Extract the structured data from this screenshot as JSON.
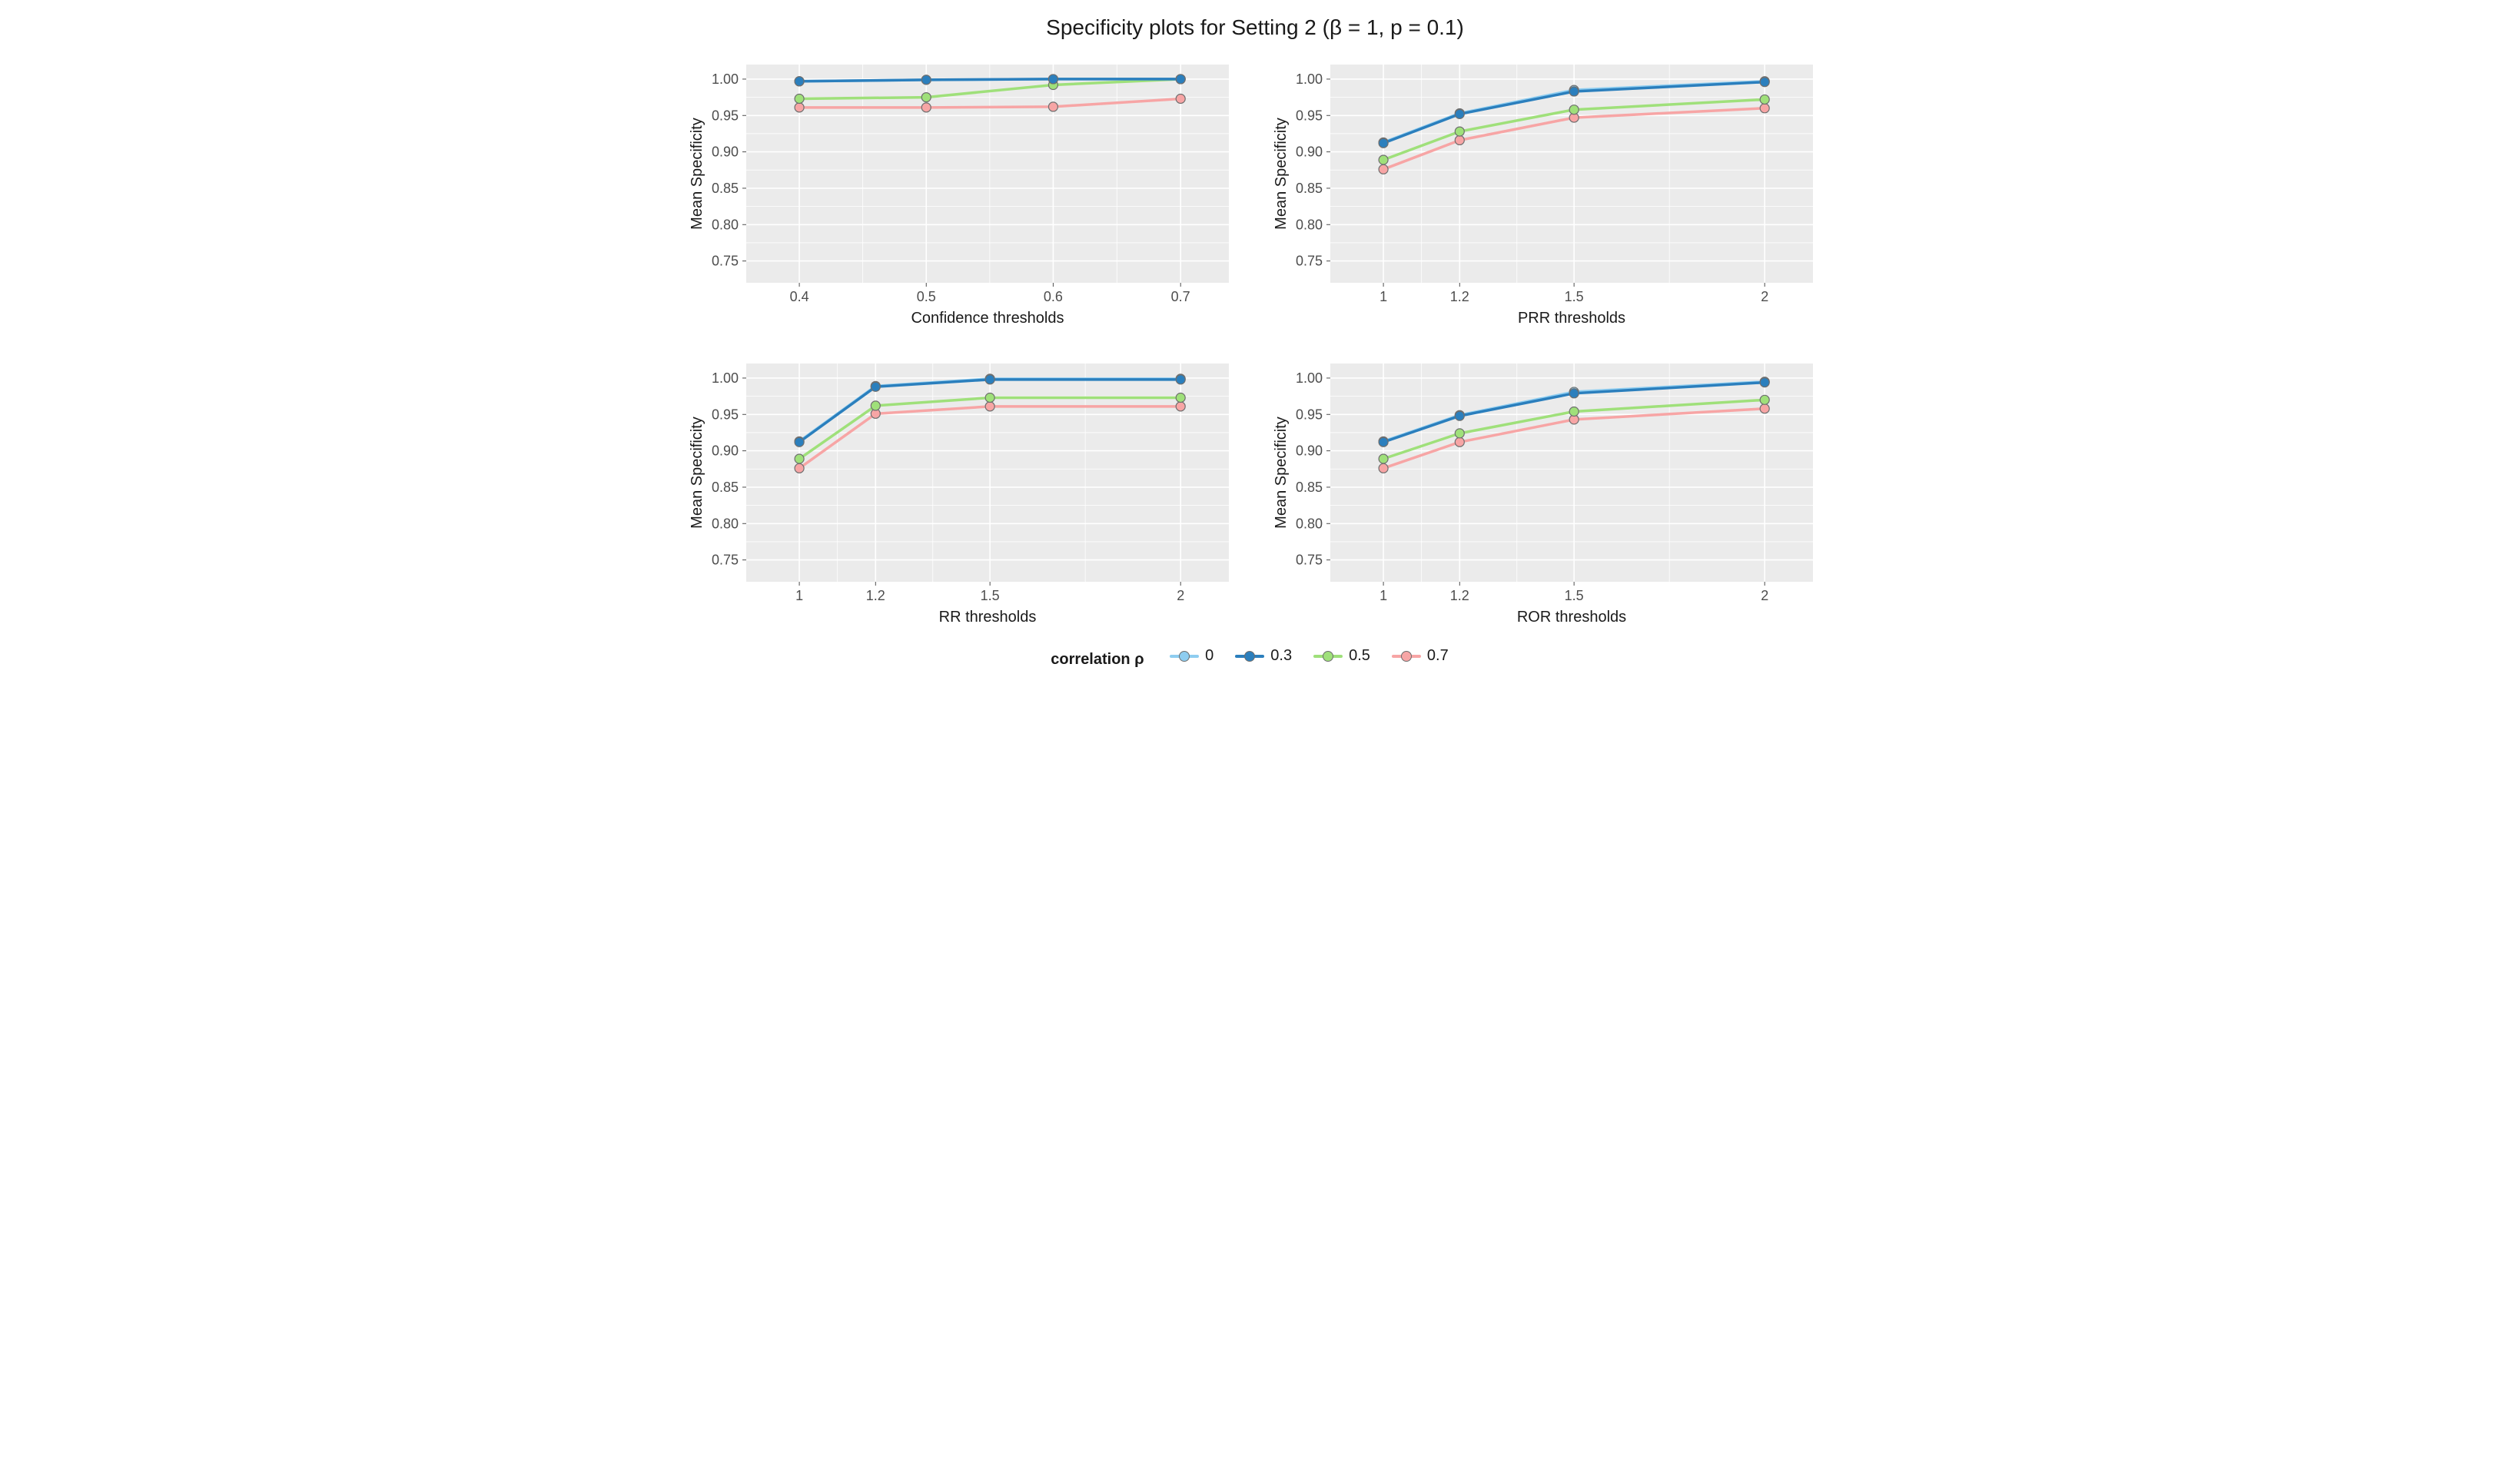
{
  "title": "Specificity plots for Setting 2 (β = 1, p = 0.1)",
  "legend": {
    "label": "correlation ρ",
    "items": [
      {
        "name": "0",
        "color": "#8ecdf0"
      },
      {
        "name": "0.3",
        "color": "#2b7fbd"
      },
      {
        "name": "0.5",
        "color": "#9fe07a"
      },
      {
        "name": "0.7",
        "color": "#f7a5a5"
      }
    ]
  },
  "common": {
    "ylabel": "Mean Specificity",
    "ylim": [
      0.72,
      1.02
    ],
    "yticks": [
      0.75,
      0.8,
      0.85,
      0.9,
      0.95,
      1.0
    ],
    "ytick_labels": [
      "0.75",
      "0.80",
      "0.85",
      "0.90",
      "0.95",
      "1.00"
    ],
    "panel_bg": "#ebebeb",
    "grid_color": "#ffffff",
    "label_color": "#4d4d4d",
    "tick_color": "#4d4d4d",
    "axis_title_color": "#1a1a1a",
    "label_fontsize": 18,
    "axis_title_fontsize": 20,
    "line_width": 3.5,
    "marker_radius": 6,
    "marker_stroke": "#6e6e6e",
    "marker_stroke_width": 1.2
  },
  "panels": [
    {
      "id": "confidence",
      "xlabel": "Confidence thresholds",
      "xvalues": [
        0.4,
        0.5,
        0.6,
        0.7
      ],
      "xtick_labels": [
        "0.4",
        "0.5",
        "0.6",
        "0.7"
      ],
      "xpositions": [
        0.11,
        0.373,
        0.636,
        0.9
      ],
      "series": {
        "0": [
          0.997,
          0.999,
          1.0,
          1.0
        ],
        "0.3": [
          0.997,
          0.999,
          1.0,
          1.0
        ],
        "0.5": [
          0.973,
          0.975,
          0.992,
          1.0
        ],
        "0.7": [
          0.961,
          0.961,
          0.962,
          0.973
        ]
      }
    },
    {
      "id": "prr",
      "xlabel": "PRR thresholds",
      "xvalues": [
        1,
        1.2,
        1.5,
        2
      ],
      "xtick_labels": [
        "1",
        "1.2",
        "1.5",
        "2"
      ],
      "xpositions": [
        0.11,
        0.268,
        0.505,
        0.9
      ],
      "series": {
        "0": [
          0.913,
          0.953,
          0.985,
          0.997
        ],
        "0.3": [
          0.912,
          0.952,
          0.983,
          0.996
        ],
        "0.5": [
          0.889,
          0.928,
          0.958,
          0.972
        ],
        "0.7": [
          0.876,
          0.916,
          0.947,
          0.96
        ]
      }
    },
    {
      "id": "rr",
      "xlabel": "RR thresholds",
      "xvalues": [
        1,
        1.2,
        1.5,
        2
      ],
      "xtick_labels": [
        "1",
        "1.2",
        "1.5",
        "2"
      ],
      "xpositions": [
        0.11,
        0.268,
        0.505,
        0.9
      ],
      "series": {
        "0": [
          0.913,
          0.989,
          0.999,
          0.999
        ],
        "0.3": [
          0.912,
          0.988,
          0.998,
          0.998
        ],
        "0.5": [
          0.889,
          0.962,
          0.973,
          0.973
        ],
        "0.7": [
          0.876,
          0.951,
          0.961,
          0.961
        ]
      }
    },
    {
      "id": "ror",
      "xlabel": "ROR thresholds",
      "xvalues": [
        1,
        1.2,
        1.5,
        2
      ],
      "xtick_labels": [
        "1",
        "1.2",
        "1.5",
        "2"
      ],
      "xpositions": [
        0.11,
        0.268,
        0.505,
        0.9
      ],
      "series": {
        "0": [
          0.913,
          0.949,
          0.981,
          0.995
        ],
        "0.3": [
          0.912,
          0.948,
          0.979,
          0.994
        ],
        "0.5": [
          0.889,
          0.924,
          0.954,
          0.97
        ],
        "0.7": [
          0.876,
          0.912,
          0.943,
          0.958
        ]
      }
    }
  ]
}
